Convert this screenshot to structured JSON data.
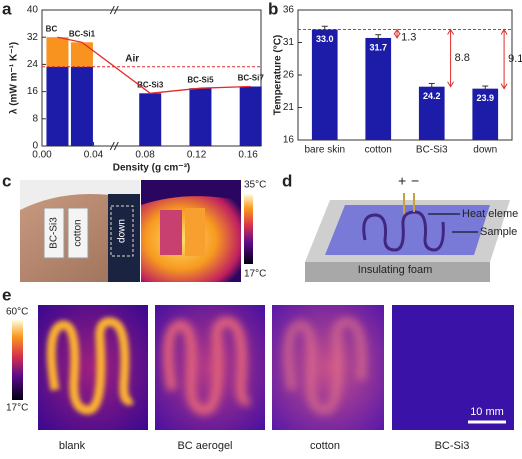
{
  "panel_labels": [
    "a",
    "b",
    "c",
    "d",
    "e"
  ],
  "chart_data": [
    {
      "type": "bar",
      "xlabel": "Density (g cm⁻³)",
      "ylabel": "λ (mW m⁻¹ K⁻¹)",
      "categories": [
        "BC",
        "BC-Si1",
        "BC-Si3",
        "BC-Si5",
        "BC-Si7"
      ],
      "x": [
        0.012,
        0.031,
        0.084,
        0.123,
        0.162
      ],
      "values": [
        32,
        30.5,
        15.5,
        17,
        17.5
      ],
      "xlim": [
        0,
        0.17
      ],
      "xticks": [
        {
          "value": 0,
          "label": "0.00"
        },
        {
          "value": 0.04,
          "label": "0.04"
        },
        {
          "value": 0.08,
          "label": "0.08"
        },
        {
          "value": 0.12,
          "label": "0.12"
        },
        {
          "value": 0.16,
          "label": "0.16"
        }
      ],
      "ylim": [
        0,
        40
      ],
      "yticks": [
        0,
        8,
        16,
        24,
        32,
        40
      ],
      "color": "#1c1ca8",
      "color_above_air": "#f7931e",
      "curve_color": "#e32b2b",
      "air": {
        "label": "Air",
        "value": 23.3
      }
    },
    {
      "type": "bar",
      "ylabel": "Temperature (°C)",
      "categories": [
        "bare skin",
        "cotton",
        "BC-Si3",
        "down"
      ],
      "values": [
        33.0,
        31.7,
        24.2,
        23.9
      ],
      "value_labels": [
        "33.0",
        "31.7",
        "24.2",
        "23.9"
      ],
      "errors": [
        0.5,
        0.5,
        0.5,
        0.4
      ],
      "differences": [
        1.3,
        8.8,
        9.1
      ],
      "ylim": [
        16,
        36
      ],
      "yticks": [
        16,
        21,
        26,
        31,
        36
      ],
      "color": "#1c1ca8",
      "reference_color": "#e32b2b"
    }
  ],
  "panel_c": {
    "labels": [
      "BC-Si3",
      "cotton",
      "down"
    ],
    "scale_max": "35°C",
    "scale_min": "17°C"
  },
  "panel_d": {
    "plus": "+",
    "minus": "−",
    "heat": "Heat eleme",
    "sample": "Sample",
    "foam": "Insulating foam"
  },
  "panel_e": {
    "scale_max": "60°C",
    "scale_min": "17°C",
    "samples": [
      "blank",
      "BC aerogel",
      "cotton",
      "BC-Si3"
    ],
    "scale_bar": "10 mm"
  }
}
